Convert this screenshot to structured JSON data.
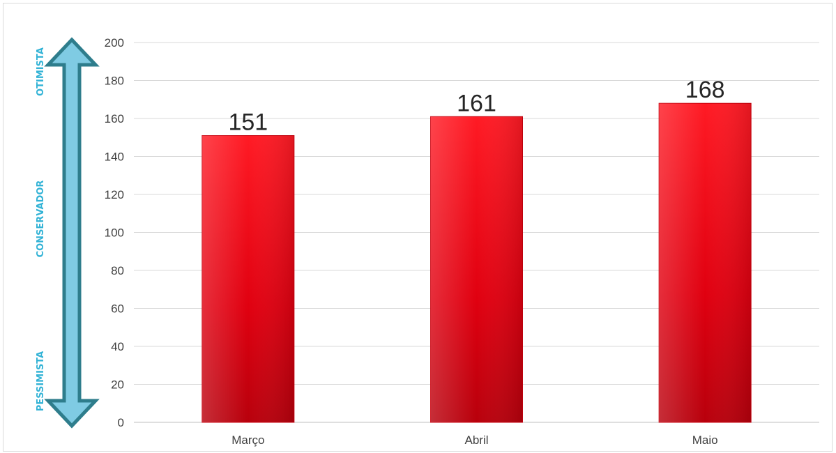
{
  "chart_data": {
    "type": "bar",
    "categories": [
      "Março",
      "Abril",
      "Maio"
    ],
    "values": [
      151,
      161,
      168
    ],
    "ylim": [
      0,
      200
    ],
    "y_ticks": [
      0,
      20,
      40,
      60,
      80,
      100,
      120,
      140,
      160,
      180,
      200
    ],
    "grid": true,
    "data_labels": true,
    "bar_color": "#e8000f",
    "scenario_scale": {
      "labels": [
        "OTIMISTA",
        "CONSERVADOR",
        "PESSIMISTA"
      ],
      "arrow_fill": "#7fcbe3",
      "arrow_stroke": "#2e7d8c",
      "text_color": "#33b3d6"
    }
  }
}
